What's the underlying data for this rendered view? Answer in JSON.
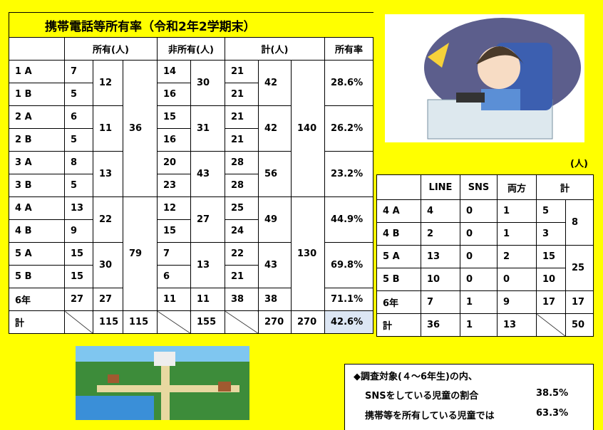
{
  "main_table": {
    "title": "携帯電話等所有率（令和2年2学期末）",
    "headers": [
      "所有(人)",
      "非所有(人)",
      "計(人)",
      "所有率"
    ],
    "rows": [
      [
        "1 A",
        "7",
        "12",
        "36",
        "14",
        "30",
        "21",
        "42",
        "140",
        "28.6%"
      ],
      [
        "1 B",
        "5",
        "16",
        "21"
      ],
      [
        "2 A",
        "6",
        "11",
        "15",
        "31",
        "21",
        "42",
        "26.2%"
      ],
      [
        "2 B",
        "5",
        "16",
        "21"
      ],
      [
        "3 A",
        "8",
        "13",
        "20",
        "43",
        "28",
        "56",
        "23.2%"
      ],
      [
        "3 B",
        "5",
        "23",
        "28"
      ],
      [
        "4 A",
        "13",
        "22",
        "79",
        "12",
        "27",
        "25",
        "49",
        "130",
        "44.9%"
      ],
      [
        "4 B",
        "9",
        "15",
        "24"
      ],
      [
        "5 A",
        "15",
        "30",
        "7",
        "13",
        "22",
        "43",
        "69.8%"
      ],
      [
        "5 B",
        "15",
        "6",
        "21"
      ],
      [
        "6年",
        "27",
        "27",
        "11",
        "11",
        "38",
        "38",
        "71.1%"
      ],
      [
        "計",
        "115",
        "115",
        "155",
        "270",
        "270",
        "42.6%"
      ]
    ]
  },
  "side_table": {
    "unit": "(人)",
    "headers": [
      "LINE",
      "SNS",
      "両方",
      "計"
    ],
    "rows": [
      [
        "4 A",
        "4",
        "0",
        "1",
        "5",
        "8"
      ],
      [
        "4 B",
        "2",
        "0",
        "1",
        "3"
      ],
      [
        "5 A",
        "13",
        "0",
        "2",
        "15",
        "25"
      ],
      [
        "5 B",
        "10",
        "0",
        "0",
        "10"
      ],
      [
        "6年",
        "7",
        "1",
        "9",
        "17",
        "17"
      ],
      [
        "計",
        "36",
        "1",
        "13",
        "50"
      ]
    ]
  },
  "note": {
    "heading": "◆調査対象(４～6年生)の内、",
    "items": [
      {
        "label": "SNSをしている児童の割合",
        "value": "38.5%"
      },
      {
        "label": "携帯等を所有している児童では",
        "value": "63.3%"
      }
    ]
  }
}
